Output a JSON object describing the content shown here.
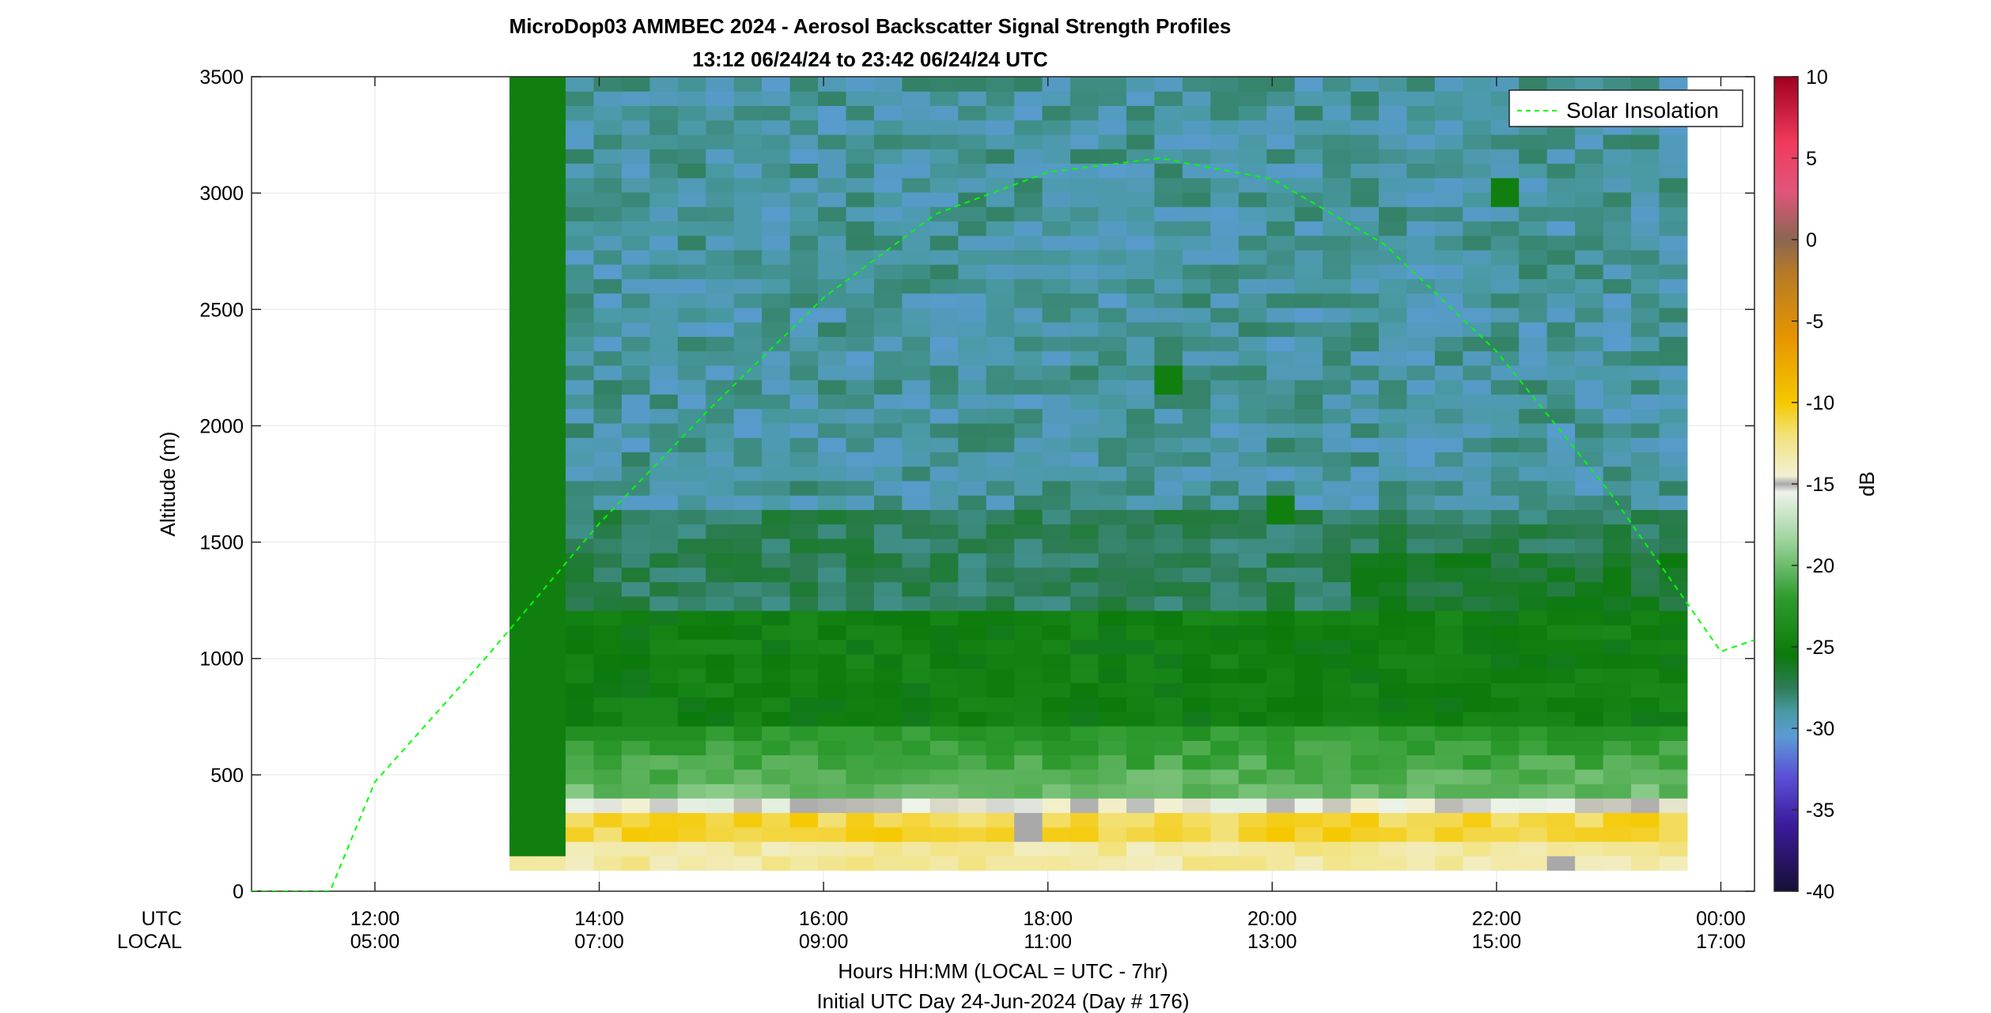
{
  "chart_data": {
    "type": "heatmap",
    "title": "MicroDop03 AMMBEC 2024 - Aerosol Backscatter Signal Strength Profiles",
    "subtitle": "13:12 06/24/24 to 23:42 06/24/24  UTC",
    "ylabel": "Altitude (m)",
    "xlabel_line1": "Hours HH:MM  (LOCAL = UTC - 7hr)",
    "xlabel_line2": "Initial UTC Day 24-Jun-2024 (Day # 176)",
    "x_row_labels": [
      "UTC",
      "LOCAL"
    ],
    "xlim_utc_hours": [
      10.9,
      24.3
    ],
    "ylim": [
      0,
      3500
    ],
    "yticks": [
      0,
      500,
      1000,
      1500,
      2000,
      2500,
      3000,
      3500
    ],
    "xticks": [
      {
        "hour": 12,
        "utc": "12:00",
        "local": "05:00"
      },
      {
        "hour": 14,
        "utc": "14:00",
        "local": "07:00"
      },
      {
        "hour": 16,
        "utc": "16:00",
        "local": "09:00"
      },
      {
        "hour": 18,
        "utc": "18:00",
        "local": "11:00"
      },
      {
        "hour": 20,
        "utc": "20:00",
        "local": "13:00"
      },
      {
        "hour": 22,
        "utc": "22:00",
        "local": "15:00"
      },
      {
        "hour": 24,
        "utc": "00:00",
        "local": "17:00"
      }
    ],
    "grid": true,
    "legend": {
      "position": "top-right",
      "entries": [
        "Solar Insolation"
      ]
    },
    "colorbar": {
      "label": "dB",
      "range": [
        -40,
        10
      ],
      "ticks": [
        10,
        5,
        0,
        -5,
        -10,
        -15,
        -20,
        -25,
        -30,
        -35,
        -40
      ],
      "stops": [
        {
          "db": -40,
          "color": "#161036"
        },
        {
          "db": -36,
          "color": "#3a1a9a"
        },
        {
          "db": -33,
          "color": "#5b4fd6"
        },
        {
          "db": -30.5,
          "color": "#5b9bd5"
        },
        {
          "db": -29,
          "color": "#4a9aa6"
        },
        {
          "db": -27.5,
          "color": "#2e7c56"
        },
        {
          "db": -25.5,
          "color": "#0b7a0b"
        },
        {
          "db": -22,
          "color": "#2e9b2e"
        },
        {
          "db": -18.5,
          "color": "#9cd49c"
        },
        {
          "db": -15.5,
          "color": "#eef3ea"
        },
        {
          "db": -15,
          "color": "#a9a9a9"
        },
        {
          "db": -14.5,
          "color": "#f2f0d5"
        },
        {
          "db": -12,
          "color": "#f2e27a"
        },
        {
          "db": -10,
          "color": "#f5c800"
        },
        {
          "db": -6,
          "color": "#e69500"
        },
        {
          "db": -2,
          "color": "#b57a28"
        },
        {
          "db": 0,
          "color": "#8b6652"
        },
        {
          "db": 3,
          "color": "#e0557a"
        },
        {
          "db": 6,
          "color": "#f03a5c"
        },
        {
          "db": 10,
          "color": "#a0001e"
        }
      ]
    },
    "heatmap": {
      "time_start_utc": 13.2,
      "time_end_utc": 23.7,
      "altitude_bin_m": 62,
      "altitude_start_m": 90,
      "altitude_top_m": 3500,
      "profile_times_utc": [
        13.2,
        13.45,
        13.7,
        13.95,
        14.2,
        14.45,
        14.7,
        14.95,
        15.2,
        15.45,
        15.7,
        15.95,
        16.2,
        16.45,
        16.7,
        16.95,
        17.2,
        17.45,
        17.7,
        17.95,
        18.2,
        18.45,
        18.7,
        18.95,
        19.2,
        19.45,
        19.7,
        19.95,
        20.2,
        20.45,
        20.7,
        20.95,
        21.2,
        21.45,
        21.7,
        21.95,
        22.2,
        22.45,
        22.7,
        22.95,
        23.2,
        23.45
      ],
      "profile_typical_db": {
        "near_surface_100_300m": -11,
        "layer_300_400m": -15,
        "layer_400_700m": -20,
        "layer_700_1200m": -25,
        "layer_1200_1600m": -27.5,
        "free_troposphere_1600_3500m": -29
      },
      "notable_cells": [
        {
          "time_utc": 13.3,
          "altitude_range_m": [
            100,
            3500
          ],
          "db": -25,
          "note": "first profile column"
        },
        {
          "time_utc": 22.0,
          "altitude_range_m": [
            2900,
            3050
          ],
          "db": -25
        },
        {
          "time_utc": 19.9,
          "altitude_range_m": [
            1520,
            1700
          ],
          "db": -25
        },
        {
          "time_utc": 19.0,
          "altitude_range_m": [
            2130,
            2230
          ],
          "db": -25
        },
        {
          "time_utc": 17.7,
          "altitude_range_m": [
            160,
            300
          ],
          "db": -15
        },
        {
          "time_utc": 22.5,
          "altitude_range_m": [
            90,
            150
          ],
          "db": -15
        }
      ]
    },
    "series": [
      {
        "name": "Solar Insolation",
        "line_style": "dashed",
        "color": "#00ff00",
        "x_utc_hours": [
          10.9,
          11.3,
          11.6,
          12.0,
          13.0,
          14.0,
          15.0,
          16.0,
          17.0,
          18.0,
          19.0,
          20.0,
          21.0,
          22.0,
          23.0,
          24.0,
          24.3
        ],
        "y_plot_units": [
          0,
          0,
          0,
          470,
          1010,
          1580,
          2080,
          2550,
          2910,
          3090,
          3150,
          3060,
          2780,
          2320,
          1720,
          1030,
          1080
        ]
      }
    ]
  }
}
